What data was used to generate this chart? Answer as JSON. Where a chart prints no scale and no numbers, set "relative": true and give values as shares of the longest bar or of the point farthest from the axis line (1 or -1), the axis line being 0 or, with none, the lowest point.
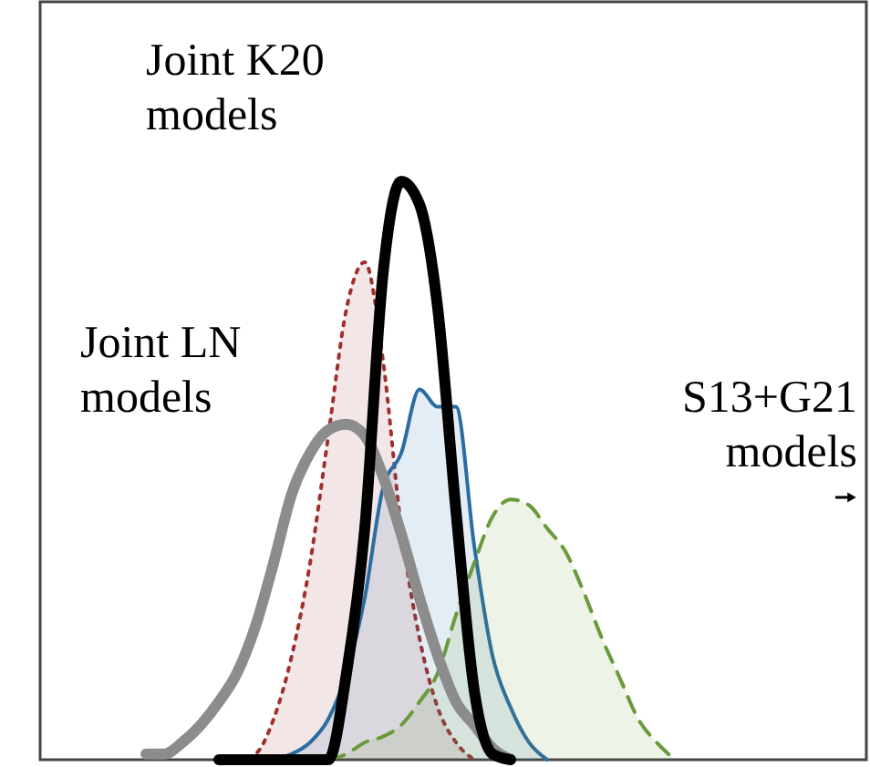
{
  "chart_data": {
    "type": "line",
    "relative": true,
    "categories": [
      null,
      null,
      null,
      null,
      null,
      null,
      null,
      null,
      null,
      null,
      null,
      null,
      null,
      null,
      null,
      null,
      null,
      null,
      null,
      null,
      null,
      null,
      null,
      null,
      null,
      null,
      null,
      null,
      null,
      null,
      null,
      null,
      null,
      null,
      null,
      null,
      null,
      null,
      null,
      null,
      null,
      null,
      null,
      null,
      null,
      null
    ],
    "series": [
      {
        "type": "area",
        "color": "#a0302e",
        "line_style": "dotted",
        "values": [
          null,
          null,
          null,
          null,
          null,
          null,
          null,
          null,
          null,
          null,
          null,
          0,
          0.01,
          0.07,
          0.18,
          0.34,
          0.56,
          0.78,
          0.86,
          0.69,
          0.4,
          0.21,
          0.09,
          0.03,
          0,
          null,
          null,
          null,
          null,
          null,
          null,
          null,
          null,
          null,
          null,
          null,
          null,
          null,
          null,
          null,
          null,
          null,
          null,
          null,
          null,
          null
        ]
      },
      {
        "type": "area",
        "color": "#2b6ca3",
        "line_style": "solid",
        "values": [
          null,
          null,
          null,
          null,
          null,
          null,
          null,
          null,
          null,
          null,
          null,
          null,
          null,
          0,
          0.01,
          0.03,
          0.07,
          0.15,
          0.28,
          0.47,
          0.53,
          0.64,
          0.61,
          0.61,
          0.37,
          0.18,
          0.09,
          0.03,
          0,
          null,
          null,
          null,
          null,
          null,
          null,
          null,
          null,
          null,
          null,
          null,
          null,
          null,
          null,
          null,
          null,
          null
        ]
      },
      {
        "type": "area",
        "color": "#6b9a3c",
        "line_style": "dashed",
        "values": [
          null,
          null,
          null,
          null,
          null,
          null,
          null,
          null,
          null,
          null,
          null,
          null,
          null,
          null,
          null,
          null,
          0,
          0.01,
          0.03,
          0.04,
          0.06,
          0.1,
          0.15,
          0.25,
          0.34,
          0.42,
          0.45,
          0.44,
          0.4,
          0.36,
          0.29,
          0.21,
          0.14,
          0.07,
          0.03,
          0,
          null,
          null,
          null,
          null,
          null,
          null,
          null,
          null,
          null,
          null
        ]
      },
      {
        "color": "#8c8c8c",
        "line_style": "solid",
        "values": [
          null,
          null,
          null,
          null,
          null,
          null,
          0.01,
          0.01,
          0.03,
          0.06,
          0.1,
          0.15,
          0.23,
          0.34,
          0.46,
          0.53,
          0.57,
          0.58,
          0.56,
          0.49,
          0.39,
          0.28,
          0.18,
          0.1,
          0.06,
          0.02,
          0,
          null,
          null,
          null,
          null,
          null,
          null,
          null,
          null,
          null,
          null,
          null,
          null,
          null,
          null,
          null,
          null,
          null,
          null,
          null
        ]
      },
      {
        "color": "#000000",
        "line_style": "solid",
        "values": [
          null,
          null,
          null,
          null,
          null,
          null,
          null,
          null,
          null,
          null,
          0,
          0,
          0,
          0,
          0,
          0,
          0,
          0.15,
          0.4,
          0.84,
          1.0,
          0.96,
          0.78,
          0.43,
          0.12,
          0.01,
          0,
          null,
          null,
          null,
          null,
          null,
          null,
          null,
          null,
          null,
          null,
          null,
          null,
          null,
          null,
          null,
          null,
          null,
          null,
          null
        ]
      }
    ],
    "annotations": [
      "Joint K20 models",
      "Joint LN models",
      "S13+G21 models"
    ]
  }
}
